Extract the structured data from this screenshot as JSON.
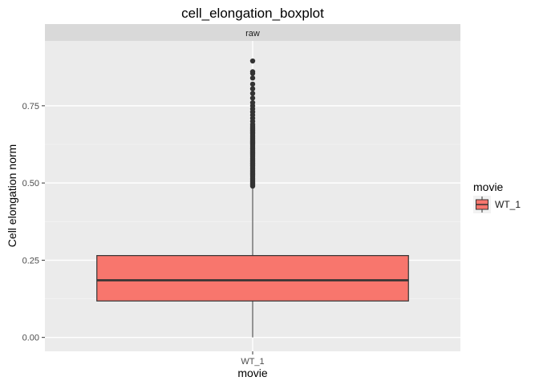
{
  "chart_data": {
    "type": "boxplot",
    "title": "cell_elongation_boxplot",
    "facet": "raw",
    "xlabel": "movie",
    "ylabel": "Cell elongation norm",
    "categories": [
      "WT_1"
    ],
    "yticks": [
      0.0,
      0.25,
      0.5,
      0.75
    ],
    "ytick_labels": [
      "0.00",
      "0.25",
      "0.50",
      "0.75"
    ],
    "ylim": [
      -0.045,
      0.96
    ],
    "grid": true,
    "legend": {
      "title": "movie",
      "entries": [
        "WT_1"
      ],
      "position": "right"
    },
    "series": [
      {
        "name": "WT_1",
        "color": "#F8766D",
        "min": 0.0,
        "q1": 0.118,
        "median": 0.185,
        "q3": 0.265,
        "whisker_high": 0.487,
        "outliers": [
          0.49,
          0.495,
          0.5,
          0.505,
          0.51,
          0.515,
          0.52,
          0.525,
          0.53,
          0.535,
          0.54,
          0.545,
          0.55,
          0.555,
          0.56,
          0.565,
          0.57,
          0.575,
          0.58,
          0.585,
          0.59,
          0.595,
          0.6,
          0.605,
          0.61,
          0.615,
          0.62,
          0.625,
          0.63,
          0.635,
          0.64,
          0.645,
          0.65,
          0.655,
          0.66,
          0.665,
          0.67,
          0.675,
          0.68,
          0.685,
          0.69,
          0.7,
          0.71,
          0.72,
          0.73,
          0.74,
          0.75,
          0.76,
          0.775,
          0.79,
          0.805,
          0.82,
          0.84,
          0.855,
          0.86,
          0.895
        ]
      }
    ]
  }
}
